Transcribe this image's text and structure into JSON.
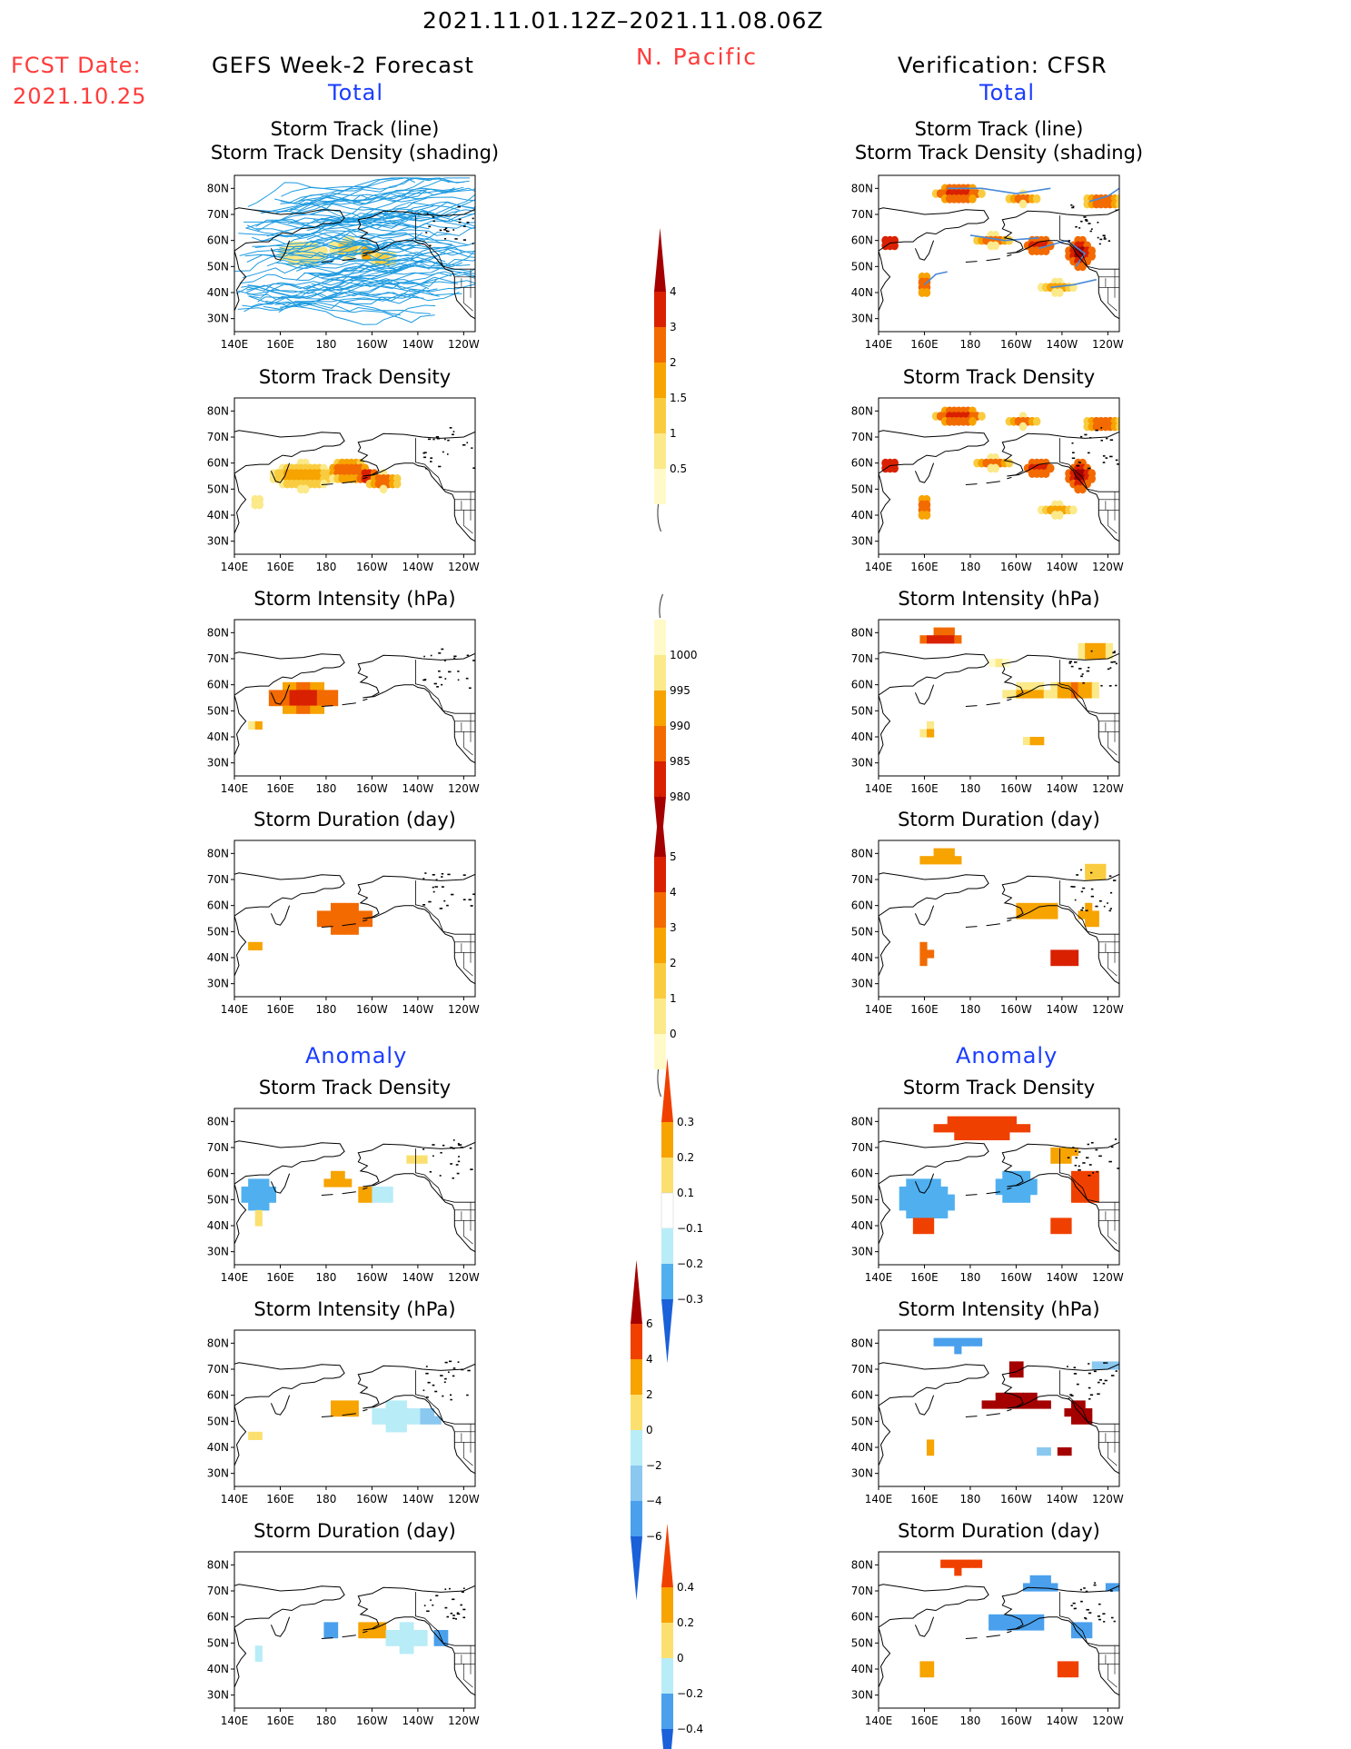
{
  "header": {
    "date_range": "2021.11.01.12Z–2021.11.08.06Z",
    "region": "N. Pacific",
    "fcst_label": "FCST Date:",
    "fcst_date": "2021.10.25",
    "left_title": "GEFS Week-2 Forecast",
    "right_title": "Verification: CFSR",
    "total_label": "Total",
    "anomaly_label": "Anomaly"
  },
  "colors": {
    "red_text": "#ff3b3b",
    "blue_text": "#1a3cff",
    "track_line": "#1e9be0",
    "coast": "#000000"
  },
  "chart_data": {
    "type": "heatmap",
    "axes": {
      "x_ticks": [
        "140E",
        "160E",
        "180",
        "160W",
        "140W",
        "120W"
      ],
      "y_ticks": [
        "80N",
        "70N",
        "60N",
        "50N",
        "40N",
        "30N"
      ],
      "xlim": [
        140,
        245
      ],
      "ylim": [
        25,
        85
      ]
    },
    "panels": {
      "total": [
        {
          "title": "Storm Track (line)",
          "title2": "Storm Track Density (shading)"
        },
        {
          "title": "Storm Track Density"
        },
        {
          "title": "Storm Intensity (hPa)"
        },
        {
          "title": "Storm Duration (day)"
        }
      ],
      "anomaly": [
        {
          "title": "Storm Track Density"
        },
        {
          "title": "Storm Intensity (hPa)"
        },
        {
          "title": "Storm Duration (day)"
        }
      ]
    },
    "colorbars": [
      {
        "name": "total-density",
        "labels": [
          "4",
          "3",
          "2",
          "1.5",
          "1",
          "0.5"
        ],
        "colors": [
          "#a50000",
          "#d92000",
          "#f26a00",
          "#f7a300",
          "#f9cc40",
          "#fbe98a",
          "#fffac8"
        ]
      },
      {
        "name": "total-intensity",
        "labels": [
          "1000",
          "995",
          "990",
          "985",
          "980"
        ],
        "colors": [
          "#fffac8",
          "#fbe98a",
          "#f7a300",
          "#f26a00",
          "#d92000",
          "#a50000"
        ]
      },
      {
        "name": "total-duration",
        "labels": [
          "5",
          "4",
          "3",
          "2",
          "1",
          "0"
        ],
        "colors": [
          "#a50000",
          "#d92000",
          "#f26a00",
          "#f7a300",
          "#f9cc40",
          "#fbe98a",
          "#fffac8"
        ]
      },
      {
        "name": "anom-density",
        "labels": [
          "0.3",
          "0.2",
          "0.1",
          "−0.1",
          "−0.2",
          "−0.3"
        ],
        "colors": [
          "#f04000",
          "#f7a300",
          "#fbe070",
          "#ffffff",
          "#b8ecf7",
          "#50b0ef",
          "#1a60d8"
        ]
      },
      {
        "name": "anom-intensity",
        "labels": [
          "6",
          "4",
          "2",
          "0",
          "−2",
          "−4",
          "−6"
        ],
        "colors": [
          "#a50000",
          "#f04000",
          "#f7a300",
          "#fbe070",
          "#b8ecf7",
          "#8ac8f0",
          "#4aa0ec",
          "#1a60d8"
        ]
      },
      {
        "name": "anom-duration",
        "labels": [
          "0.4",
          "0.2",
          "0",
          "−0.2",
          "−0.4"
        ],
        "colors": [
          "#f04000",
          "#f7a300",
          "#fbe070",
          "#b8ecf7",
          "#4aa0ec",
          "#1a60d8"
        ]
      }
    ],
    "fields": {
      "fc_density": [
        [
          170,
          55,
          1.6,
          13,
          5
        ],
        [
          190,
          57,
          2.2,
          9,
          4
        ],
        [
          198,
          55,
          3.4,
          4,
          2.5
        ],
        [
          205,
          53,
          2.0,
          7,
          3
        ],
        [
          150,
          45,
          0.8,
          3,
          2
        ]
      ],
      "vr_density": [
        [
          145,
          59,
          3.6,
          4,
          2.5
        ],
        [
          175,
          78,
          3.0,
          10,
          3
        ],
        [
          228,
          55,
          4.2,
          5,
          5
        ],
        [
          210,
          58,
          3.2,
          6,
          3
        ],
        [
          238,
          75,
          2.2,
          9,
          2.5
        ],
        [
          203,
          76,
          2.0,
          7,
          2
        ],
        [
          160,
          43,
          2.2,
          3,
          4
        ],
        [
          218,
          42,
          1.5,
          8,
          2
        ],
        [
          190,
          60,
          2.0,
          8,
          2
        ]
      ],
      "fc_intensity": [
        [
          170,
          55,
          982,
          16,
          5
        ]
      ],
      "vr_intensity": [
        [
          168,
          78,
          980,
          9,
          3
        ],
        [
          235,
          73,
          988,
          8,
          2.5
        ],
        [
          205,
          57,
          990,
          10,
          3
        ],
        [
          225,
          58,
          988,
          10,
          4
        ],
        [
          162,
          42,
          992,
          3,
          3
        ],
        [
          208,
          38,
          990,
          5,
          2
        ],
        [
          192,
          68,
          995,
          4,
          2
        ]
      ],
      "fc_duration": [
        [
          188,
          55,
          3.2,
          13,
          5
        ],
        [
          150,
          45,
          2.0,
          3,
          2
        ]
      ],
      "vr_duration": [
        [
          168,
          78,
          2.0,
          9,
          3
        ],
        [
          235,
          73,
          1.8,
          7,
          2
        ],
        [
          210,
          58,
          2.0,
          10,
          3
        ],
        [
          232,
          56,
          2.5,
          4,
          4
        ],
        [
          222,
          40,
          4.5,
          8,
          2
        ],
        [
          160,
          42,
          3.2,
          3,
          4
        ]
      ],
      "fc_anom_density": [
        [
          150,
          52,
          -0.25,
          8,
          5
        ],
        [
          185,
          57,
          0.28,
          7,
          3
        ],
        [
          198,
          52,
          0.2,
          4,
          3
        ],
        [
          205,
          52,
          -0.12,
          5,
          4
        ],
        [
          150,
          43,
          0.15,
          3,
          2
        ],
        [
          220,
          66,
          0.12,
          5,
          2
        ]
      ],
      "vr_anom_density": [
        [
          185,
          78,
          0.3,
          20,
          4
        ],
        [
          160,
          50,
          -0.3,
          12,
          8
        ],
        [
          200,
          55,
          -0.3,
          10,
          6
        ],
        [
          230,
          55,
          0.3,
          6,
          7
        ],
        [
          160,
          40,
          0.3,
          4,
          3
        ],
        [
          220,
          40,
          0.3,
          7,
          2
        ],
        [
          220,
          68,
          0.2,
          6,
          3
        ]
      ],
      "fc_anom_intensity": [
        [
          188,
          55,
          3.0,
          6,
          3
        ],
        [
          210,
          52,
          -2.0,
          10,
          5
        ],
        [
          225,
          51,
          -4.0,
          5,
          3
        ],
        [
          150,
          45,
          1.5,
          3,
          2
        ]
      ],
      "vr_anom_intensity": [
        [
          175,
          80,
          -6,
          10,
          2.5
        ],
        [
          200,
          57,
          6,
          14,
          3
        ],
        [
          228,
          53,
          6,
          6,
          4
        ],
        [
          240,
          72,
          -4,
          6,
          2
        ],
        [
          200,
          70,
          6,
          4,
          2
        ],
        [
          162,
          40,
          2,
          2,
          2
        ],
        [
          222,
          38,
          6,
          3,
          2
        ],
        [
          213,
          38,
          -3,
          3,
          2
        ]
      ],
      "fc_anom_duration": [
        [
          200,
          55,
          0.3,
          7,
          3
        ],
        [
          215,
          52,
          -0.2,
          8,
          5
        ],
        [
          230,
          52,
          -0.4,
          4,
          3
        ],
        [
          182,
          55,
          -0.4,
          3,
          2
        ],
        [
          150,
          46,
          -0.15,
          3,
          2
        ]
      ],
      "vr_anom_duration": [
        [
          175,
          80,
          0.4,
          9,
          2.5
        ],
        [
          210,
          72,
          -0.4,
          8,
          3
        ],
        [
          245,
          72,
          -0.4,
          6,
          2
        ],
        [
          200,
          58,
          -0.4,
          14,
          3
        ],
        [
          228,
          55,
          -0.3,
          5,
          4
        ],
        [
          160,
          40,
          0.3,
          3,
          3
        ],
        [
          222,
          40,
          0.4,
          7,
          2
        ]
      ]
    }
  }
}
